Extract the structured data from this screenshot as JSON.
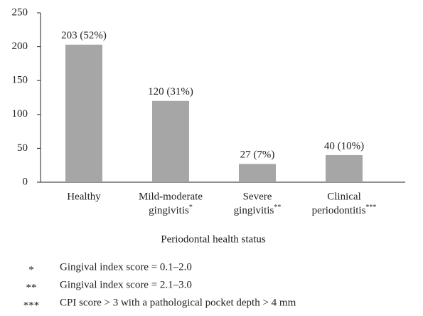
{
  "chart_data": {
    "type": "bar",
    "categories": [
      [
        "Healthy"
      ],
      [
        "Mild-moderate",
        "gingivitis"
      ],
      [
        "Severe",
        "gingivitis"
      ],
      [
        "Clinical",
        "periodontitis"
      ]
    ],
    "category_notes": [
      null,
      "*",
      "**",
      "***"
    ],
    "values": [
      203,
      120,
      27,
      40
    ],
    "value_labels": [
      "203 (52%)",
      "120 (31%)",
      "27 (7%)",
      "40 (10%)"
    ],
    "color": "#a6a6a6",
    "xlabel": "Periodontal health status",
    "ylim": [
      0,
      250
    ],
    "yticks": [
      0,
      50,
      100,
      150,
      200,
      250
    ],
    "grid": false,
    "footnotes": [
      {
        "mark": "*",
        "text": "Gingival index score = 0.1–2.0"
      },
      {
        "mark": "**",
        "text": "Gingival index score = 2.1–3.0"
      },
      {
        "mark": "***",
        "text": "CPI score > 3 with a pathological pocket depth > 4 mm"
      }
    ]
  }
}
